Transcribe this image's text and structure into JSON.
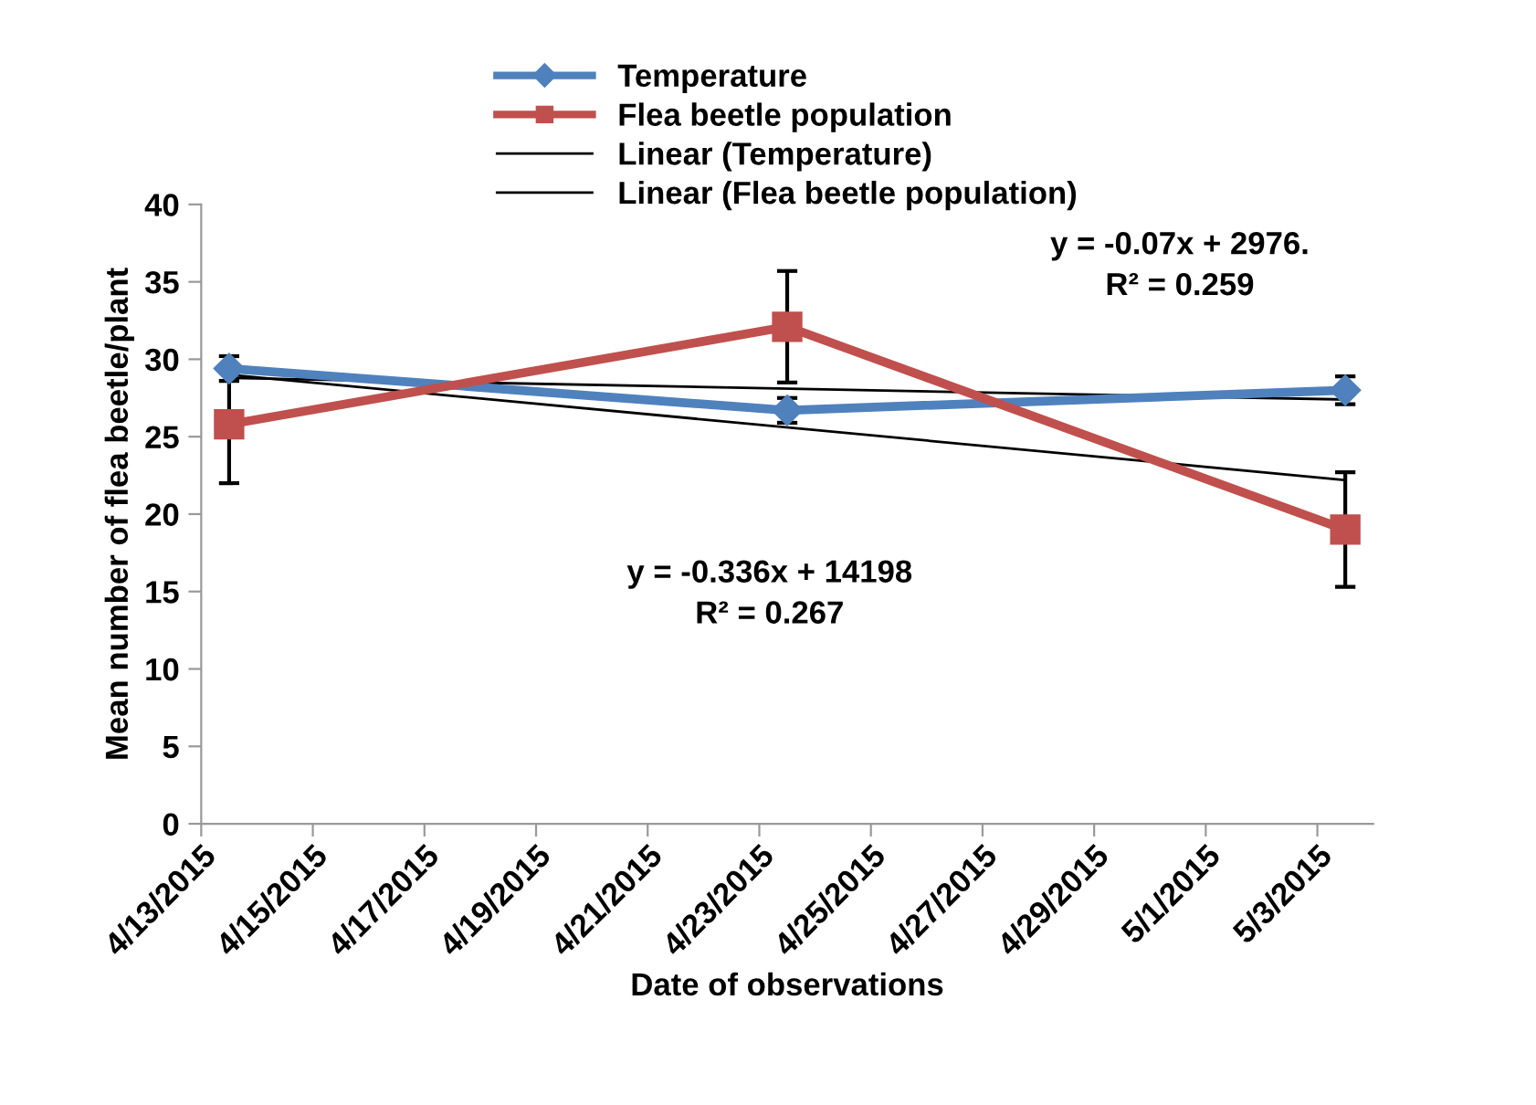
{
  "chart_data": {
    "type": "line",
    "xlabel": "Date of observations",
    "ylabel": "Mean number of flea beetle/plant",
    "x": [
      "2015-04-13T12:00",
      "2015-04-23T12:00",
      "2015-05-03T12:00"
    ],
    "series": [
      {
        "name": "Temperature",
        "color": "#4f81bd",
        "marker": "diamond",
        "values": [
          29.4,
          26.7,
          28.0
        ],
        "errors": [
          0.8,
          0.8,
          0.9
        ]
      },
      {
        "name": "Flea beetle population",
        "color": "#c0504d",
        "marker": "square",
        "values": [
          25.8,
          32.1,
          19.0
        ],
        "errors": [
          3.8,
          3.6,
          3.7
        ]
      },
      {
        "name": "Linear (Temperature)",
        "type": "line",
        "color": "#000000",
        "marker": "none",
        "x": [
          "2015-04-13T12:00",
          "2015-05-03T12:00"
        ],
        "values": [
          28.8,
          27.4
        ]
      },
      {
        "name": "Linear (Flea beetle population)",
        "type": "line",
        "color": "#000000",
        "marker": "none",
        "x": [
          "2015-04-13T12:00",
          "2015-05-03T12:00"
        ],
        "values": [
          29.0,
          22.2
        ]
      }
    ],
    "xlim": [
      "2015-04-13",
      "2015-05-04"
    ],
    "xticks": [
      {
        "value": "2015-04-13",
        "label": "4/13/2015"
      },
      {
        "value": "2015-04-15",
        "label": "4/15/2015"
      },
      {
        "value": "2015-04-17",
        "label": "4/17/2015"
      },
      {
        "value": "2015-04-19",
        "label": "4/19/2015"
      },
      {
        "value": "2015-04-21",
        "label": "4/21/2015"
      },
      {
        "value": "2015-04-23",
        "label": "4/23/2015"
      },
      {
        "value": "2015-04-25",
        "label": "4/25/2015"
      },
      {
        "value": "2015-04-27",
        "label": "4/27/2015"
      },
      {
        "value": "2015-04-29",
        "label": "4/29/2015"
      },
      {
        "value": "2015-05-01",
        "label": "5/1/2015"
      },
      {
        "value": "2015-05-03",
        "label": "5/3/2015"
      }
    ],
    "ylim": [
      0,
      40
    ],
    "yticks": [
      0,
      5,
      10,
      15,
      20,
      25,
      30,
      35,
      40
    ],
    "annotations": [
      "y = -0.07x + 2976.\nR² = 0.259",
      "y = -0.336x + 14198\nR² = 0.267"
    ],
    "legend": "top",
    "grid": false
  }
}
